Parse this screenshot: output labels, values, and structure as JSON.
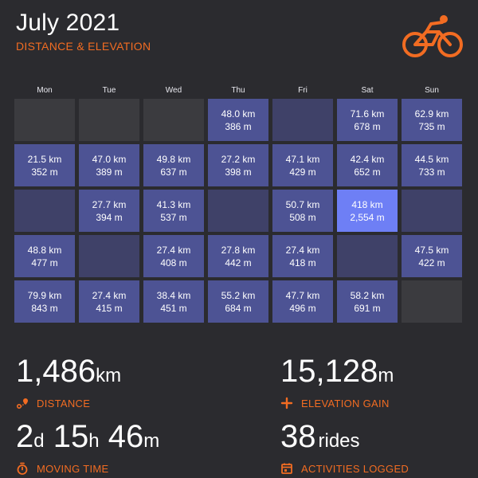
{
  "header": {
    "title": "July 2021",
    "subtitle": "DISTANCE & ELEVATION",
    "logo_icon": "cyclist-icon"
  },
  "colors": {
    "background": "#2b2b2f",
    "accent": "#f26c22",
    "ride_cell": "#4d5394",
    "best_cell": "#6e7ff5",
    "empty_cell": "#3b3b3f"
  },
  "calendar": {
    "days": [
      "Mon",
      "Tue",
      "Wed",
      "Thu",
      "Fri",
      "Sat",
      "Sun"
    ],
    "weeks": [
      [
        null,
        null,
        null,
        {
          "km": "48.0 km",
          "m": "386 m"
        },
        null,
        {
          "km": "71.6 km",
          "m": "678 m"
        },
        {
          "km": "62.9 km",
          "m": "735 m"
        }
      ],
      [
        {
          "km": "21.5 km",
          "m": "352 m"
        },
        {
          "km": "47.0 km",
          "m": "389 m"
        },
        {
          "km": "49.8 km",
          "m": "637 m"
        },
        {
          "km": "27.2 km",
          "m": "398 m"
        },
        {
          "km": "47.1 km",
          "m": "429 m"
        },
        {
          "km": "42.4 km",
          "m": "652 m"
        },
        {
          "km": "44.5 km",
          "m": "733 m"
        }
      ],
      [
        null,
        {
          "km": "27.7 km",
          "m": "394 m"
        },
        {
          "km": "41.3 km",
          "m": "537 m"
        },
        null,
        {
          "km": "50.7 km",
          "m": "508 m"
        },
        {
          "km": "418 km",
          "m": "2,554 m",
          "best": true
        },
        null
      ],
      [
        {
          "km": "48.8 km",
          "m": "477 m"
        },
        null,
        {
          "km": "27.4 km",
          "m": "408 m"
        },
        {
          "km": "27.8 km",
          "m": "442 m"
        },
        {
          "km": "27.4 km",
          "m": "418 m"
        },
        null,
        {
          "km": "47.5 km",
          "m": "422 m"
        }
      ],
      [
        {
          "km": "79.9 km",
          "m": "843 m"
        },
        {
          "km": "27.4 km",
          "m": "415 m"
        },
        {
          "km": "38.4 km",
          "m": "451 m"
        },
        {
          "km": "55.2 km",
          "m": "684 m"
        },
        {
          "km": "47.7 km",
          "m": "496 m"
        },
        {
          "km": "58.2 km",
          "m": "691 m"
        },
        null
      ]
    ],
    "in_month": [
      [
        false,
        false,
        false,
        true,
        true,
        true,
        true
      ],
      [
        true,
        true,
        true,
        true,
        true,
        true,
        true
      ],
      [
        true,
        true,
        true,
        true,
        true,
        true,
        true
      ],
      [
        true,
        true,
        true,
        true,
        true,
        true,
        true
      ],
      [
        true,
        true,
        true,
        true,
        true,
        true,
        false
      ]
    ]
  },
  "stats": {
    "distance": {
      "value": "1,486",
      "unit": "km",
      "label": "DISTANCE",
      "icon": "route-icon"
    },
    "elevation": {
      "value": "15,128",
      "unit": "m",
      "label": "ELEVATION GAIN",
      "icon": "plus-icon"
    },
    "moving_time": {
      "d": "2",
      "d_unit": "d",
      "h": "15",
      "h_unit": "h",
      "m": "46",
      "m_unit": "m",
      "label": "MOVING TIME",
      "icon": "stopwatch-icon"
    },
    "activities": {
      "value": "38",
      "unit": "rides",
      "label": "ACTIVITIES LOGGED",
      "icon": "calendar-icon"
    }
  }
}
